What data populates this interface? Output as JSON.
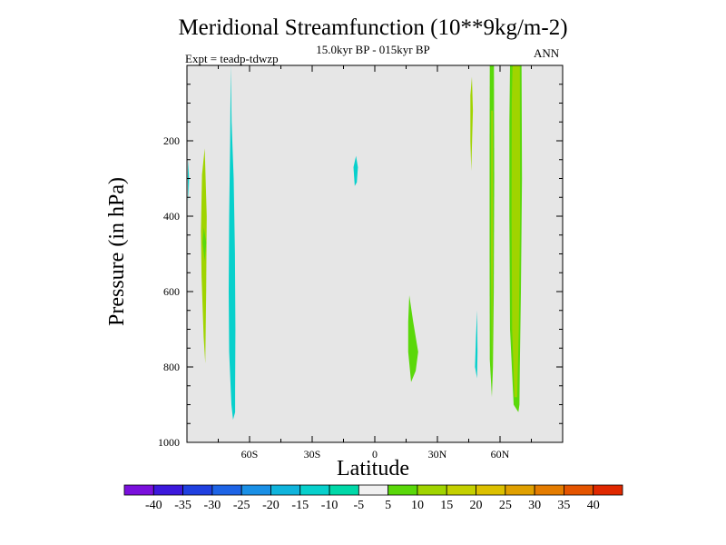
{
  "chart_data": {
    "type": "contour",
    "title": "Meridional Streamfunction (10**9kg/m-2)",
    "subtitle": "15.0kyr BP - 015kyr BP",
    "experiment": "Expt = teadp-tdwzp",
    "season": "ANN",
    "xlabel": "Latitude",
    "ylabel": "Pressure (in hPa)",
    "xlim": [
      -90,
      90
    ],
    "ylim": [
      0,
      1000
    ],
    "y_inverted": true,
    "x_ticks": [
      {
        "value": -60,
        "label": "60S"
      },
      {
        "value": -30,
        "label": "30S"
      },
      {
        "value": 0,
        "label": "0"
      },
      {
        "value": 30,
        "label": "30N"
      },
      {
        "value": 60,
        "label": "60N"
      }
    ],
    "y_ticks": [
      {
        "value": 200,
        "label": "200"
      },
      {
        "value": 400,
        "label": "400"
      },
      {
        "value": 600,
        "label": "600"
      },
      {
        "value": 800,
        "label": "800"
      },
      {
        "value": 1000,
        "label": "1000"
      }
    ],
    "background_color": "#e6e6e6",
    "colorbar": {
      "labels": [
        "-40",
        "-35",
        "-30",
        "-25",
        "-20",
        "-15",
        "-10",
        "-5",
        "5",
        "10",
        "15",
        "20",
        "25",
        "30",
        "35",
        "40"
      ],
      "colors": [
        "#7a10dc",
        "#3c18dc",
        "#2040e0",
        "#1e64e6",
        "#1a90e6",
        "#10b4dc",
        "#08d0cc",
        "#00d8a8",
        "#f0f0f0",
        "#5ad80a",
        "#a0d400",
        "#c4d000",
        "#dcc000",
        "#e0a000",
        "#e47c00",
        "#e45400",
        "#e02800"
      ]
    },
    "regions": [
      {
        "name": "sh-green-band",
        "color": "#a0d400",
        "points": [
          [
            -81.5,
            220
          ],
          [
            -80.5,
            400
          ],
          [
            -80.8,
            600
          ],
          [
            -81.2,
            790
          ],
          [
            -82.0,
            720
          ],
          [
            -83.0,
            560
          ],
          [
            -83.3,
            440
          ],
          [
            -82.8,
            290
          ]
        ]
      },
      {
        "name": "sh-green-core",
        "color": "#5ad80a",
        "points": [
          [
            -81.9,
            430
          ],
          [
            -80.8,
            470
          ],
          [
            -81.5,
            520
          ],
          [
            -82.5,
            470
          ]
        ]
      },
      {
        "name": "sh-teal-column",
        "color": "#08d0cc",
        "points": [
          [
            -69.0,
            0
          ],
          [
            -68.6,
            150
          ],
          [
            -67.6,
            300
          ],
          [
            -67.0,
            500
          ],
          [
            -66.8,
            700
          ],
          [
            -66.9,
            860
          ],
          [
            -66.9,
            920
          ],
          [
            -67.9,
            940
          ],
          [
            -68.7,
            900
          ],
          [
            -69.8,
            760
          ],
          [
            -70.0,
            600
          ],
          [
            -69.8,
            400
          ],
          [
            -69.3,
            200
          ]
        ]
      },
      {
        "name": "sh-teal-edge",
        "color": "#08d0cc",
        "points": [
          [
            -89.4,
            250
          ],
          [
            -89.0,
            300
          ],
          [
            -89.2,
            360
          ],
          [
            -89.6,
            300
          ]
        ]
      },
      {
        "name": "tropic-teal-blob",
        "color": "#08d0cc",
        "points": [
          [
            -9.0,
            240
          ],
          [
            -8.1,
            270
          ],
          [
            -8.6,
            310
          ],
          [
            -9.6,
            320
          ],
          [
            -10.2,
            270
          ]
        ]
      },
      {
        "name": "subtropic-green-blob",
        "color": "#5ad80a",
        "points": [
          [
            16.5,
            610
          ],
          [
            18.4,
            680
          ],
          [
            20.8,
            760
          ],
          [
            19.6,
            810
          ],
          [
            17.4,
            840
          ],
          [
            16.0,
            760
          ],
          [
            16.0,
            680
          ]
        ]
      },
      {
        "name": "nh-green-narrow",
        "color": "#a0d400",
        "points": [
          [
            46.5,
            30
          ],
          [
            47.0,
            120
          ],
          [
            46.6,
            200
          ],
          [
            46.2,
            280
          ],
          [
            45.8,
            200
          ],
          [
            45.8,
            80
          ]
        ]
      },
      {
        "name": "nh-teal-narrow",
        "color": "#08d0cc",
        "points": [
          [
            49.0,
            650
          ],
          [
            49.2,
            760
          ],
          [
            49.0,
            830
          ],
          [
            48.0,
            800
          ],
          [
            48.5,
            720
          ]
        ]
      },
      {
        "name": "nh-green-column-a",
        "color": "#5ad80a",
        "points": [
          [
            55.1,
            0
          ],
          [
            57.1,
            0
          ],
          [
            57.2,
            300
          ],
          [
            57.0,
            600
          ],
          [
            56.6,
            800
          ],
          [
            56.1,
            880
          ],
          [
            55.1,
            780
          ],
          [
            55.0,
            500
          ],
          [
            55.0,
            200
          ]
        ]
      },
      {
        "name": "nh-yellow-column-a",
        "color": "#a0d400",
        "points": [
          [
            55.8,
            120
          ],
          [
            56.5,
            120
          ],
          [
            56.6,
            500
          ],
          [
            56.1,
            820
          ],
          [
            55.7,
            500
          ]
        ]
      },
      {
        "name": "nh-green-column-b",
        "color": "#5ad80a",
        "points": [
          [
            64.8,
            0
          ],
          [
            70.3,
            0
          ],
          [
            70.5,
            300
          ],
          [
            70.0,
            600
          ],
          [
            69.5,
            800
          ],
          [
            69.3,
            900
          ],
          [
            68.8,
            920
          ],
          [
            66.5,
            900
          ],
          [
            64.8,
            700
          ],
          [
            64.5,
            400
          ],
          [
            64.5,
            150
          ]
        ]
      },
      {
        "name": "nh-yellow-column-b",
        "color": "#a0d400",
        "points": [
          [
            66.0,
            0
          ],
          [
            69.5,
            0
          ],
          [
            69.6,
            400
          ],
          [
            69.0,
            700
          ],
          [
            68.2,
            880
          ],
          [
            66.9,
            880
          ],
          [
            65.8,
            700
          ],
          [
            65.5,
            400
          ],
          [
            65.6,
            100
          ]
        ]
      }
    ]
  }
}
